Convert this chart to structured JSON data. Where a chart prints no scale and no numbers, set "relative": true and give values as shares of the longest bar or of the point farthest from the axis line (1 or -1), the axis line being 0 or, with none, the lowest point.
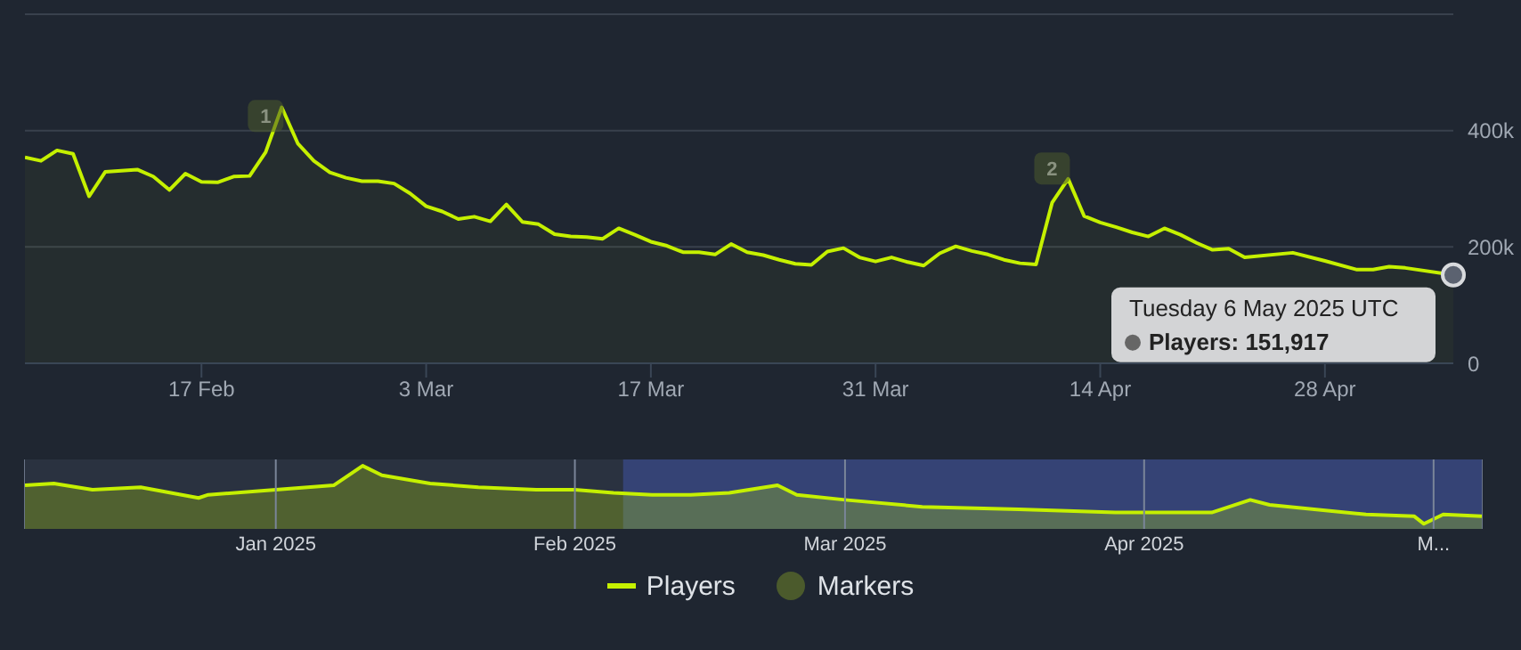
{
  "chart_data": [
    {
      "type": "area",
      "xlim": [
        "2025-02-06",
        "2025-05-06"
      ],
      "xticks": [
        {
          "value": "2025-02-17",
          "label": "17 Feb"
        },
        {
          "value": "2025-03-03",
          "label": "3 Mar"
        },
        {
          "value": "2025-03-17",
          "label": "17 Mar"
        },
        {
          "value": "2025-03-31",
          "label": "31 Mar"
        },
        {
          "value": "2025-04-14",
          "label": "14 Apr"
        },
        {
          "value": "2025-04-28",
          "label": "28 Apr"
        }
      ],
      "ylim": [
        0,
        600000
      ],
      "yticks": [
        0,
        {
          "value": 200000,
          "label": "200k"
        },
        {
          "value": 400000,
          "label": "400k"
        },
        {
          "value": 600000,
          "label": null
        }
      ],
      "grid": "y",
      "legend": "bottom",
      "series": [
        {
          "name": "Players",
          "color": "#c5f000",
          "x": [
            "2025-02-06",
            "2025-02-07",
            "2025-02-08",
            "2025-02-09",
            "2025-02-10",
            "2025-02-11",
            "2025-02-12",
            "2025-02-13",
            "2025-02-14",
            "2025-02-15",
            "2025-02-16",
            "2025-02-17",
            "2025-02-18",
            "2025-02-19",
            "2025-02-20",
            "2025-02-21",
            "2025-02-22",
            "2025-02-23",
            "2025-02-24",
            "2025-02-25",
            "2025-02-26",
            "2025-02-27",
            "2025-02-28",
            "2025-03-01",
            "2025-03-02",
            "2025-03-03",
            "2025-03-04",
            "2025-03-05",
            "2025-03-06",
            "2025-03-07",
            "2025-03-08",
            "2025-03-09",
            "2025-03-10",
            "2025-03-11",
            "2025-03-12",
            "2025-03-13",
            "2025-03-14",
            "2025-03-15",
            "2025-03-16",
            "2025-03-17",
            "2025-03-18",
            "2025-03-19",
            "2025-03-20",
            "2025-03-21",
            "2025-03-22",
            "2025-03-23",
            "2025-03-24",
            "2025-03-25",
            "2025-03-26",
            "2025-03-27",
            "2025-03-28",
            "2025-03-29",
            "2025-03-30",
            "2025-03-31",
            "2025-04-01",
            "2025-04-02",
            "2025-04-03",
            "2025-04-04",
            "2025-04-05",
            "2025-04-06",
            "2025-04-07",
            "2025-04-08",
            "2025-04-09",
            "2025-04-10",
            "2025-04-11",
            "2025-04-12",
            "2025-04-13",
            "2025-04-14",
            "2025-04-15",
            "2025-04-16",
            "2025-04-17",
            "2025-04-18",
            "2025-04-19",
            "2025-04-20",
            "2025-04-21",
            "2025-04-22",
            "2025-04-23",
            "2025-04-26",
            "2025-04-28",
            "2025-04-30",
            "2025-05-01",
            "2025-05-02",
            "2025-05-03",
            "2025-05-06"
          ],
          "values": [
            354000,
            348000,
            366000,
            360000,
            287000,
            329000,
            331000,
            333000,
            321000,
            298000,
            326000,
            312000,
            311000,
            321000,
            322000,
            363000,
            440000,
            378000,
            348000,
            328000,
            319000,
            313000,
            313000,
            309000,
            292000,
            270000,
            261000,
            248000,
            252000,
            244000,
            273000,
            243000,
            239000,
            222000,
            218000,
            217000,
            214000,
            232000,
            221000,
            209000,
            202000,
            191000,
            191000,
            187000,
            205000,
            191000,
            186000,
            178000,
            171000,
            169000,
            192000,
            198000,
            182000,
            175000,
            182000,
            174000,
            168000,
            189000,
            201000,
            193000,
            187000,
            178000,
            172000,
            170000,
            276000,
            317000,
            253000,
            242000,
            234000,
            225000,
            218000,
            232000,
            221000,
            207000,
            195000,
            197000,
            182000,
            190000,
            176000,
            161000,
            161000,
            166000,
            164000,
            151917
          ]
        },
        {
          "name": "Markers",
          "type": "scatter",
          "color": "#4b5a2c",
          "x": [
            "2025-02-21",
            "2025-04-11"
          ],
          "values": [
            425000,
            335000
          ]
        }
      ],
      "annotations": [
        {
          "text": "1",
          "x": "2025-02-21",
          "y": 425000
        },
        {
          "text": "2",
          "x": "2025-04-11",
          "y": 335000
        },
        {
          "text": "Tuesday 6 May 2025 UTC",
          "x": "2025-05-06",
          "y": 151917
        },
        "Players: 151,917"
      ]
    },
    {
      "type": "area",
      "relative": true,
      "xlim": [
        "2024-12-06",
        "2025-05-06"
      ],
      "xticks": [
        {
          "value": "2025-01-01",
          "label": "Jan 2025"
        },
        {
          "value": "2025-02-01",
          "label": "Feb 2025"
        },
        {
          "value": "2025-03-01",
          "label": "Mar 2025"
        },
        {
          "value": "2025-04-01",
          "label": "Apr 2025"
        },
        {
          "value": "2025-05-01",
          "label": "M..."
        }
      ],
      "grid": "x",
      "bands": [
        {
          "axis": "x",
          "from": "2025-02-06",
          "to": "2025-05-06",
          "color": "#3a4a8c"
        }
      ],
      "series": [
        {
          "color": "#c5f000",
          "x": [
            "2024-12-06",
            "2024-12-09",
            "2024-12-13",
            "2024-12-18",
            "2024-12-24",
            "2024-12-25",
            "2025-01-01",
            "2025-01-07",
            "2025-01-10",
            "2025-01-12",
            "2025-01-17",
            "2025-01-22",
            "2025-01-28",
            "2025-02-01",
            "2025-02-05",
            "2025-02-09",
            "2025-02-13",
            "2025-02-17",
            "2025-02-22",
            "2025-02-24",
            "2025-03-01",
            "2025-03-09",
            "2025-03-19",
            "2025-03-29",
            "2025-04-08",
            "2025-04-12",
            "2025-04-14",
            "2025-04-24",
            "2025-04-29",
            "2025-04-30",
            "2025-05-02",
            "2025-05-06"
          ],
          "values": [
            0.69,
            0.72,
            0.62,
            0.66,
            0.49,
            0.54,
            0.62,
            0.69,
            1,
            0.85,
            0.72,
            0.66,
            0.62,
            0.62,
            0.57,
            0.54,
            0.54,
            0.57,
            0.69,
            0.54,
            0.46,
            0.35,
            0.31,
            0.26,
            0.26,
            0.46,
            0.38,
            0.23,
            0.2,
            0.08,
            0.23,
            0.2
          ]
        }
      ]
    }
  ]
}
